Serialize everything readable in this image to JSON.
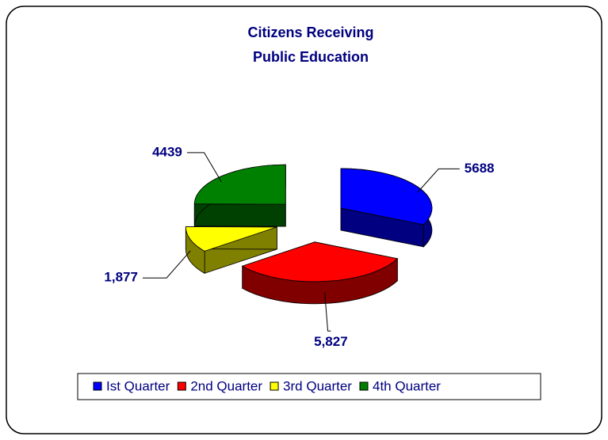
{
  "chart_data": {
    "type": "pie3d",
    "title": [
      "Citizens Receiving",
      "Public Education"
    ],
    "categories": [
      "Ist Quarter",
      "2nd Quarter",
      "3rd Quarter",
      "4th Quarter"
    ],
    "values": [
      5688,
      5827,
      1877,
      4439
    ],
    "value_labels": [
      "5688",
      "5,827",
      "1,877",
      "4439"
    ],
    "colors": [
      "#0000ff",
      "#ff0000",
      "#ffff00",
      "#008000"
    ],
    "legend": "bottom"
  }
}
